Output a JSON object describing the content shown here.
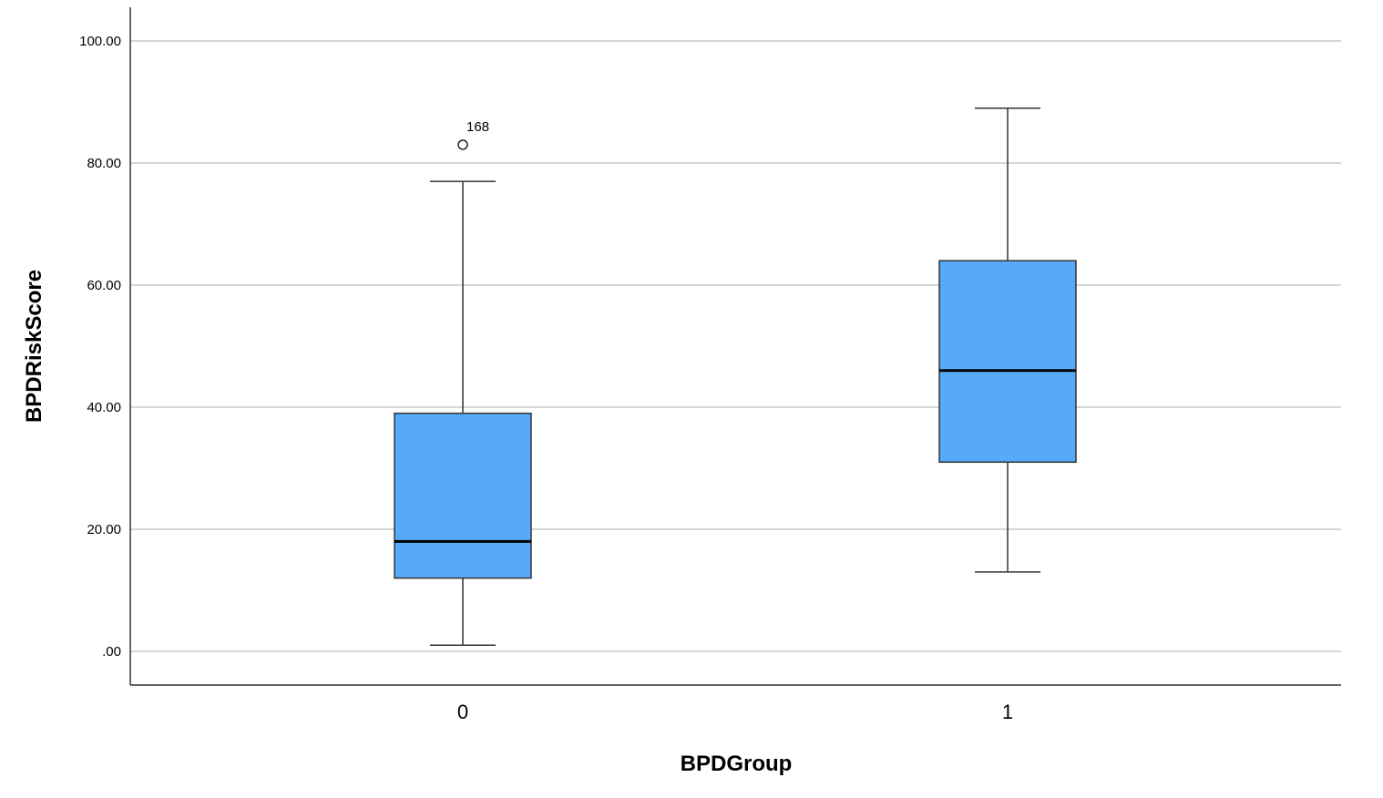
{
  "chart_data": {
    "type": "box",
    "xlabel": "BPDGroup",
    "ylabel": "BPDRiskScore",
    "ylim": [
      -5.5,
      106
    ],
    "y_ticks": [
      0,
      20,
      40,
      60,
      80,
      100
    ],
    "y_tick_labels": [
      ".00",
      "20.00",
      "40.00",
      "60.00",
      "80.00",
      "100.00"
    ],
    "grid": true,
    "categories": [
      "0",
      "1"
    ],
    "boxes": [
      {
        "category": "0",
        "whisker_low": 1,
        "q1": 12,
        "median": 18,
        "q3": 39,
        "whisker_high": 77,
        "outliers": [
          {
            "value": 83,
            "label": "168"
          }
        ]
      },
      {
        "category": "1",
        "whisker_low": 13,
        "q1": 31,
        "median": 46,
        "q3": 64,
        "whisker_high": 89,
        "outliers": []
      }
    ],
    "colors": {
      "box_fill": "#57aaf8",
      "box_stroke": "#333333",
      "median": "#000000",
      "gridline": "#c9c9c9",
      "axis": "#333333"
    }
  }
}
